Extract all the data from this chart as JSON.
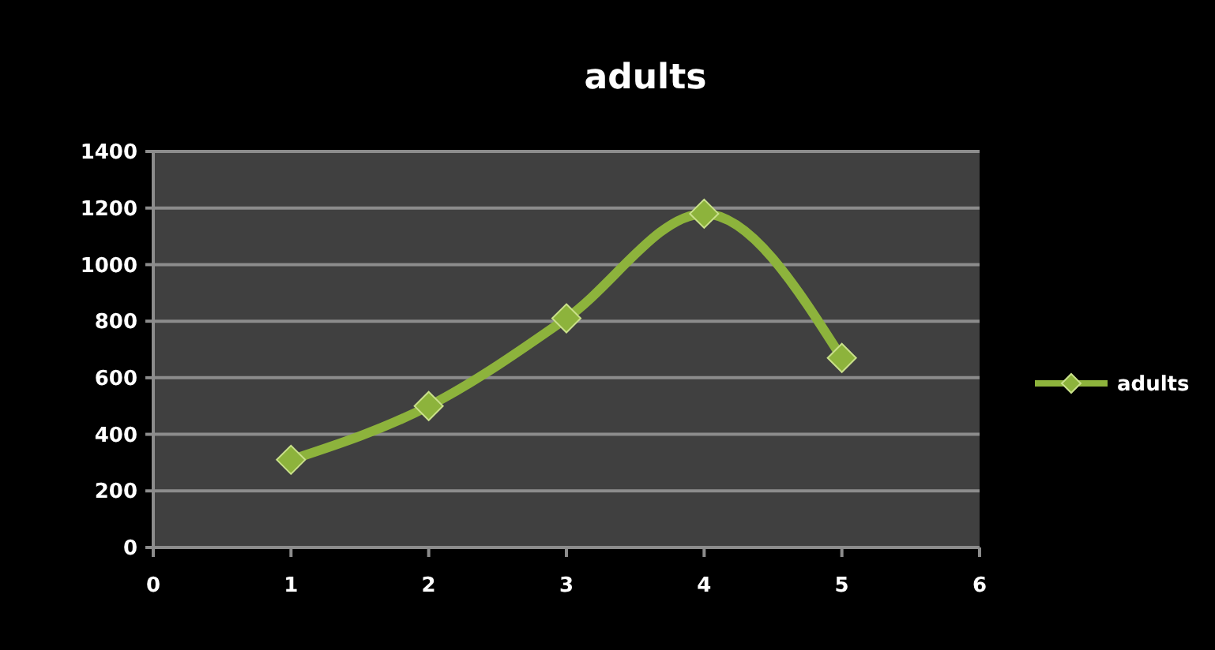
{
  "chart_data": {
    "type": "line",
    "title": "adults",
    "x": [
      1,
      2,
      3,
      4,
      5
    ],
    "series": [
      {
        "name": "adults",
        "color": "#8db33c",
        "values": [
          310,
          500,
          810,
          1180,
          670
        ]
      }
    ],
    "xlim": [
      0,
      6
    ],
    "xticks": [
      0,
      1,
      2,
      3,
      4,
      5,
      6
    ],
    "ylim": [
      0,
      1400
    ],
    "yticks": [
      0,
      200,
      400,
      600,
      800,
      1000,
      1200,
      1400
    ],
    "grid": "y",
    "legend": "right",
    "marker": "diamond",
    "line_style": "solid"
  }
}
